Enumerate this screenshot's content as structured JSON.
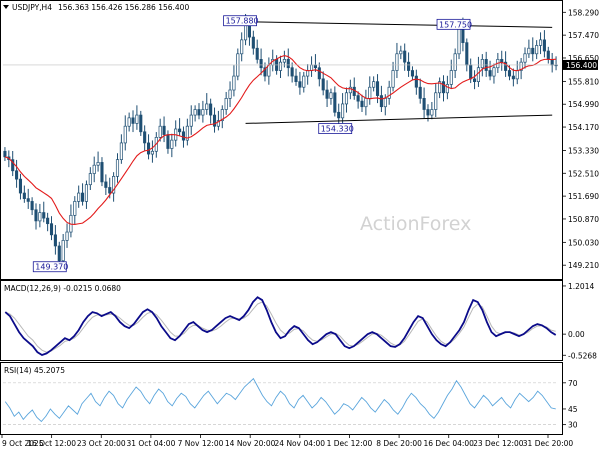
{
  "header": {
    "symbol": "USDJPY,H4",
    "ohlc": "156.363 156.426 156.286 156.400"
  },
  "watermark": "ActionForex",
  "colors": {
    "candle": "#1f4f73",
    "ma": "#e31b1b",
    "macd": "#0b0b8a",
    "signal": "#b8b8b8",
    "rsi": "#5aa5dc",
    "channel": "#000000",
    "current_price_bg": "#000000",
    "box_border": "#1a1a99",
    "grid_dash": "#c8c8c8"
  },
  "chart_data": [
    {
      "type": "candlestick",
      "panel": "price",
      "title": "USDJPY,H4",
      "ylim": [
        148.75,
        158.66
      ],
      "y_ticks": [
        "158.290",
        "157.470",
        "156.650",
        "155.810",
        "154.990",
        "154.170",
        "153.330",
        "152.510",
        "151.690",
        "150.870",
        "150.030",
        "149.210"
      ],
      "current_price": "156.400",
      "x_ticks": [
        "9 Oct 2025",
        "16 Oct 12:00",
        "23 Oct 20:00",
        "31 Oct 04:00",
        "7 Nov 12:00",
        "14 Nov 20:00",
        "24 Nov 04:00",
        "1 Dec 12:00",
        "8 Dec 20:00",
        "16 Dec 04:00",
        "23 Dec 12:00",
        "31 Dec 20:00"
      ],
      "close": [
        153.1,
        153.0,
        152.6,
        152.3,
        151.8,
        151.6,
        151.5,
        151.2,
        150.8,
        151.1,
        150.9,
        150.7,
        150.3,
        149.9,
        149.37,
        150.1,
        150.4,
        151.0,
        151.5,
        151.8,
        151.5,
        152.1,
        152.5,
        152.8,
        152.9,
        152.2,
        152.0,
        151.8,
        152.4,
        153.0,
        153.6,
        154.2,
        154.5,
        154.3,
        154.6,
        154.0,
        153.6,
        153.2,
        153.3,
        153.8,
        154.2,
        153.9,
        153.4,
        153.7,
        154.1,
        154.0,
        153.7,
        154.2,
        154.6,
        154.8,
        154.6,
        154.8,
        155.0,
        154.6,
        154.2,
        154.4,
        154.8,
        155.2,
        155.5,
        156.0,
        156.8,
        157.3,
        157.88,
        157.4,
        157.0,
        156.6,
        156.3,
        156.0,
        156.4,
        156.6,
        156.2,
        156.5,
        156.6,
        156.3,
        156.0,
        155.8,
        155.6,
        156.0,
        156.2,
        156.4,
        156.3,
        155.9,
        155.5,
        155.2,
        155.4,
        154.7,
        154.5,
        155.0,
        155.4,
        155.6,
        155.3,
        155.1,
        154.9,
        155.2,
        155.6,
        155.8,
        155.3,
        154.9,
        155.2,
        155.6,
        156.2,
        156.8,
        156.9,
        156.5,
        156.2,
        156.0,
        155.6,
        155.2,
        154.8,
        154.6,
        154.8,
        155.4,
        155.8,
        155.4,
        155.7,
        156.2,
        156.8,
        157.75,
        157.2,
        156.4,
        155.9,
        155.8,
        156.3,
        156.6,
        156.2,
        156.0,
        156.3,
        156.6,
        156.5,
        156.2,
        156.0,
        155.9,
        156.2,
        156.5,
        156.8,
        157.0,
        156.8,
        157.1,
        157.3,
        156.9,
        156.6,
        156.4,
        156.4
      ],
      "ma_period_hint": "red moving average",
      "annotations": [
        {
          "label": "157.880",
          "kind": "swing-high"
        },
        {
          "label": "157.750",
          "kind": "swing-high"
        },
        {
          "label": "154.330",
          "kind": "swing-low"
        },
        {
          "label": "149.370",
          "kind": "swing-low"
        }
      ],
      "channel": {
        "upper": [
          {
            "x": 62,
            "y": 157.95
          },
          {
            "x": 141,
            "y": 157.75
          }
        ],
        "lower": [
          {
            "x": 62,
            "y": 154.3
          },
          {
            "x": 141,
            "y": 154.6
          }
        ]
      }
    },
    {
      "type": "line",
      "panel": "macd",
      "title": "MACD(12,26,9) -0.0215 0.0680",
      "ylim": [
        -0.62,
        1.3
      ],
      "y_ticks": [
        "1.2014",
        "0.00",
        "-0.5268"
      ],
      "current_value": "0.00",
      "series": [
        {
          "name": "MACD",
          "values": [
            0.55,
            0.45,
            0.25,
            0.05,
            -0.1,
            -0.2,
            -0.3,
            -0.45,
            -0.52,
            -0.48,
            -0.4,
            -0.3,
            -0.2,
            -0.1,
            -0.15,
            -0.05,
            0.1,
            0.3,
            0.45,
            0.55,
            0.52,
            0.45,
            0.5,
            0.55,
            0.45,
            0.3,
            0.2,
            0.15,
            0.25,
            0.4,
            0.55,
            0.62,
            0.55,
            0.4,
            0.2,
            0.05,
            -0.1,
            -0.15,
            -0.05,
            0.1,
            0.25,
            0.3,
            0.2,
            0.1,
            0.05,
            0.1,
            0.2,
            0.3,
            0.4,
            0.45,
            0.4,
            0.35,
            0.45,
            0.6,
            0.8,
            0.92,
            0.85,
            0.6,
            0.3,
            0.05,
            -0.1,
            -0.05,
            0.1,
            0.2,
            0.15,
            0.0,
            -0.15,
            -0.25,
            -0.2,
            -0.1,
            0.0,
            0.05,
            0.0,
            -0.15,
            -0.3,
            -0.35,
            -0.3,
            -0.2,
            -0.1,
            0.0,
            0.05,
            0.0,
            -0.1,
            -0.2,
            -0.3,
            -0.32,
            -0.25,
            -0.1,
            0.1,
            0.3,
            0.45,
            0.4,
            0.2,
            0.0,
            -0.15,
            -0.25,
            -0.3,
            -0.2,
            -0.05,
            0.1,
            0.3,
            0.6,
            0.85,
            0.8,
            0.6,
            0.3,
            0.05,
            -0.05,
            0.0,
            0.05,
            0.05,
            0.0,
            -0.05,
            0.0,
            0.1,
            0.2,
            0.25,
            0.22,
            0.15,
            0.05,
            -0.02
          ]
        },
        {
          "name": "Signal",
          "values": [
            0.55,
            0.5,
            0.4,
            0.25,
            0.1,
            -0.05,
            -0.15,
            -0.3,
            -0.4,
            -0.45,
            -0.42,
            -0.35,
            -0.28,
            -0.18,
            -0.15,
            -0.1,
            0.0,
            0.15,
            0.3,
            0.42,
            0.48,
            0.48,
            0.48,
            0.5,
            0.48,
            0.4,
            0.3,
            0.22,
            0.22,
            0.3,
            0.42,
            0.52,
            0.55,
            0.48,
            0.35,
            0.2,
            0.05,
            -0.05,
            -0.05,
            0.02,
            0.15,
            0.22,
            0.22,
            0.15,
            0.1,
            0.08,
            0.12,
            0.2,
            0.3,
            0.38,
            0.4,
            0.38,
            0.4,
            0.48,
            0.62,
            0.75,
            0.8,
            0.7,
            0.5,
            0.28,
            0.1,
            0.0,
            0.03,
            0.12,
            0.14,
            0.08,
            -0.05,
            -0.15,
            -0.18,
            -0.14,
            -0.07,
            0.0,
            0.02,
            -0.05,
            -0.18,
            -0.28,
            -0.3,
            -0.25,
            -0.17,
            -0.08,
            0.0,
            0.02,
            -0.03,
            -0.12,
            -0.22,
            -0.28,
            -0.27,
            -0.18,
            -0.02,
            0.15,
            0.32,
            0.38,
            0.3,
            0.12,
            -0.05,
            -0.18,
            -0.25,
            -0.22,
            -0.12,
            0.02,
            0.18,
            0.42,
            0.65,
            0.75,
            0.68,
            0.45,
            0.2,
            0.05,
            0.0,
            0.03,
            0.05,
            0.03,
            -0.02,
            -0.01,
            0.05,
            0.14,
            0.2,
            0.21,
            0.18,
            0.1,
            0.07
          ]
        }
      ]
    },
    {
      "type": "line",
      "panel": "rsi",
      "title": "RSI(14) 45.2075",
      "ylim": [
        22,
        88
      ],
      "y_ticks": [
        "70",
        "45",
        "30"
      ],
      "current_value": "45",
      "levels": [
        70,
        30
      ],
      "series": [
        {
          "name": "RSI(14)",
          "values": [
            52,
            46,
            38,
            42,
            35,
            40,
            44,
            37,
            33,
            38,
            45,
            40,
            36,
            42,
            48,
            44,
            40,
            50,
            55,
            60,
            52,
            48,
            56,
            62,
            58,
            50,
            46,
            54,
            60,
            66,
            62,
            55,
            50,
            58,
            64,
            60,
            52,
            48,
            55,
            60,
            57,
            50,
            46,
            52,
            58,
            62,
            56,
            50,
            55,
            60,
            58,
            54,
            60,
            66,
            70,
            74,
            66,
            58,
            52,
            48,
            56,
            62,
            58,
            50,
            46,
            54,
            58,
            52,
            46,
            50,
            56,
            52,
            46,
            40,
            44,
            50,
            48,
            44,
            50,
            56,
            52,
            46,
            42,
            48,
            54,
            50,
            44,
            40,
            46,
            54,
            60,
            56,
            50,
            46,
            40,
            36,
            42,
            50,
            58,
            64,
            72,
            66,
            58,
            50,
            46,
            52,
            58,
            54,
            48,
            52,
            56,
            50,
            46,
            54,
            60,
            56,
            52,
            56,
            62,
            58,
            52,
            46,
            45
          ]
        }
      ]
    }
  ]
}
